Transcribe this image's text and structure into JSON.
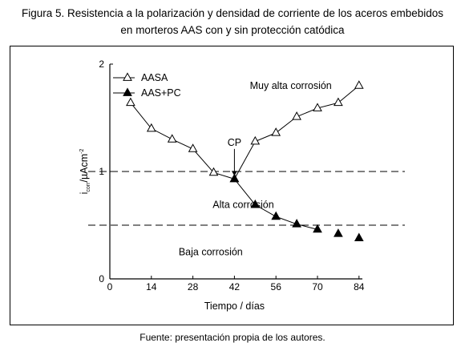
{
  "figure": {
    "title_line1": "Figura 5. Resistencia a la polarización y densidad de corriente de los aceros embebidos",
    "title_line2": "en morteros AAS con y sin protección catódica",
    "source": "Fuente: presentación propia de los autores."
  },
  "chart_data": {
    "type": "line",
    "xlabel": "Tiempo / días",
    "ylabel_main": "i",
    "ylabel_sub": "corr",
    "ylabel_unit": "/µAcm",
    "ylabel_sup": "-2",
    "xlim": [
      0,
      90
    ],
    "ylim": [
      0,
      2
    ],
    "xticks": [
      0,
      14,
      28,
      42,
      56,
      70,
      84
    ],
    "yticks": [
      0,
      1,
      2
    ],
    "grid": false,
    "legend_position": "top-left",
    "thresholds": [
      1,
      0.5
    ],
    "series": [
      {
        "name": "AASA",
        "marker": "open-triangle",
        "color": "#000000",
        "x": [
          7,
          14,
          21,
          28,
          35,
          42,
          49,
          56,
          63,
          70,
          77,
          84
        ],
        "y": [
          1.64,
          1.4,
          1.3,
          1.21,
          0.99,
          0.93,
          1.28,
          1.36,
          1.51,
          1.59,
          1.64,
          1.8
        ]
      },
      {
        "name": "AAS+PC",
        "marker": "filled-triangle",
        "color": "#000000",
        "x": [
          42,
          49,
          56,
          63,
          70,
          77,
          84
        ],
        "y": [
          0.93,
          0.69,
          0.58,
          0.51,
          0.46,
          0.42,
          0.38
        ],
        "line_until_x": 70
      }
    ],
    "annotations": [
      {
        "text": "Muy alta corrosión",
        "x": 61,
        "y": 1.8
      },
      {
        "text": "Alta corrosión",
        "x": 45,
        "y": 0.69
      },
      {
        "text": "Baja corrosión",
        "x": 34,
        "y": 0.25
      },
      {
        "text": "CP",
        "x": 42,
        "y": 1.24,
        "arrow_to_y": 0.96
      }
    ]
  }
}
